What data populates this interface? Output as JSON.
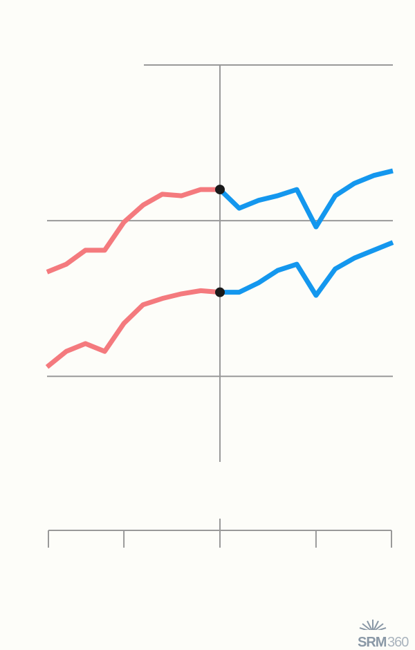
{
  "chart_data": {
    "type": "line",
    "x": [
      0,
      1,
      2,
      3,
      4,
      5,
      6,
      7,
      8,
      9,
      10,
      11,
      12,
      13,
      14,
      15,
      16,
      17,
      18
    ],
    "xlim": [
      0,
      18
    ],
    "xticks": [
      0,
      4,
      9,
      14,
      18
    ],
    "ylim": [
      -0.55,
      2
    ],
    "yticks": [
      0,
      1,
      2
    ],
    "grid": true,
    "series": [
      {
        "color": "#f47a7e",
        "values": [
          0.67,
          0.72,
          0.81,
          0.81,
          0.99,
          1.1,
          1.17,
          1.16,
          1.2,
          1.2,
          null,
          null,
          null,
          null,
          null,
          null,
          null,
          null,
          null
        ]
      },
      {
        "color": "#1497ee",
        "values": [
          null,
          null,
          null,
          null,
          null,
          null,
          null,
          null,
          null,
          1.2,
          1.08,
          1.13,
          1.16,
          1.2,
          0.96,
          1.16,
          1.24,
          1.29,
          1.32
        ]
      },
      {
        "color": "#f47a7e",
        "values": [
          0.06,
          0.16,
          0.21,
          0.16,
          0.34,
          0.46,
          0.5,
          0.53,
          0.55,
          0.54,
          null,
          null,
          null,
          null,
          null,
          null,
          null,
          null,
          null
        ]
      },
      {
        "color": "#1497ee",
        "values": [
          null,
          null,
          null,
          null,
          null,
          null,
          null,
          null,
          null,
          0.54,
          0.54,
          0.6,
          0.68,
          0.72,
          0.52,
          0.69,
          0.76,
          0.81,
          0.86
        ]
      }
    ]
  },
  "logo": {
    "brand": "SRM",
    "number": "360"
  }
}
